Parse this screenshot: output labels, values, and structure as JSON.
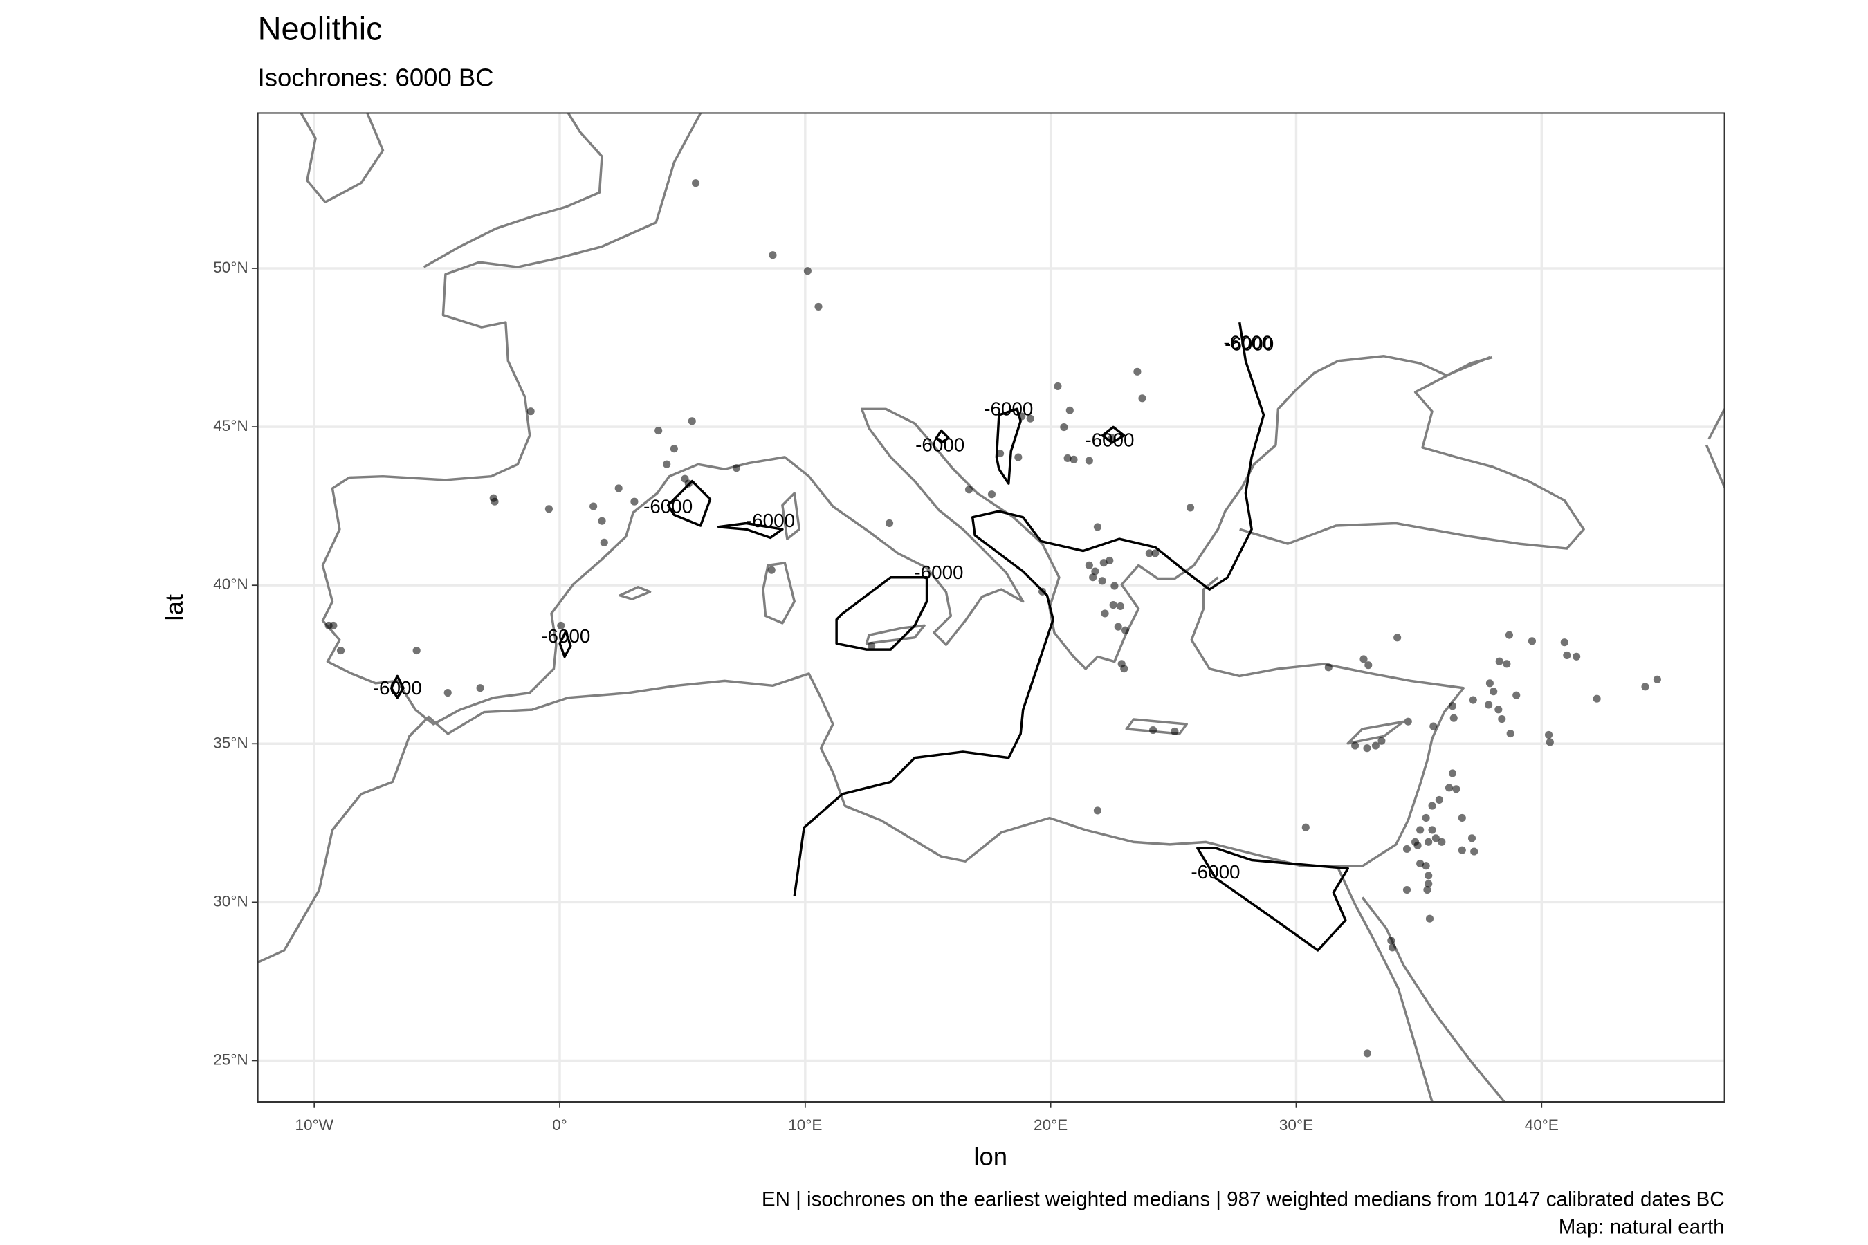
{
  "chart_data": {
    "type": "scatter",
    "title": "Neolithic",
    "subtitle": "Isochrones: 6000 BC",
    "x_label": "lon",
    "y_label": "lat",
    "caption": [
      "EN | isochrones on the earliest weighted medians | 987 weighted medians from 10147 calibrated dates BC",
      "Map: natural earth"
    ],
    "contour_level": -6000,
    "color": "#000000",
    "grid": true,
    "xlim": [
      -12.3,
      47.45
    ],
    "ylim": [
      23.7,
      54.9
    ],
    "xticks": [
      {
        "value": -10,
        "label": "10°W"
      },
      {
        "value": 0,
        "label": "0°"
      },
      {
        "value": 10,
        "label": "10°E"
      },
      {
        "value": 20,
        "label": "20°E"
      },
      {
        "value": 30,
        "label": "30°E"
      },
      {
        "value": 40,
        "label": "40°E"
      }
    ],
    "yticks": [
      {
        "value": 25,
        "label": "25°N"
      },
      {
        "value": 30,
        "label": "30°N"
      },
      {
        "value": 35,
        "label": "35°N"
      },
      {
        "value": 40,
        "label": "40°N"
      },
      {
        "value": 45,
        "label": "45°N"
      },
      {
        "value": 50,
        "label": "50°N"
      }
    ],
    "x": [
      5.54,
      8.68,
      10.1,
      10.54,
      -1.18,
      4.02,
      5.39,
      4.66,
      4.36,
      5.1,
      5.25,
      7.2,
      -2.7,
      -2.65,
      -0.44,
      1.37,
      2.4,
      3.04,
      1.72,
      1.81,
      -9.41,
      -9.22,
      -8.92,
      -5.83,
      -3.24,
      -4.56,
      0.05,
      13.43,
      8.63,
      12.7,
      16.67,
      17.6,
      18.82,
      19.17,
      17.94,
      18.68,
      20.29,
      20.78,
      20.54,
      20.69,
      20.94,
      21.57,
      22.5,
      23.53,
      23.73,
      25.69,
      21.91,
      24.02,
      24.26,
      21.57,
      22.16,
      22.4,
      21.81,
      21.72,
      22.1,
      22.6,
      22.55,
      22.84,
      22.21,
      22.75,
      23.04,
      22.89,
      22.99,
      19.66,
      24.17,
      25.05,
      21.91,
      31.32,
      32.75,
      32.94,
      34.12,
      32.9,
      32.4,
      32.89,
      33.24,
      33.48,
      34.56,
      35.59,
      36.42,
      36.37,
      37.21,
      37.89,
      38.04,
      37.84,
      38.24,
      38.38,
      38.73,
      38.28,
      38.58,
      38.68,
      38.97,
      39.61,
      40.93,
      41.03,
      41.42,
      40.29,
      40.34,
      42.25,
      44.22,
      44.71,
      30.39,
      34.51,
      34.85,
      35.05,
      35.29,
      35.54,
      35.83,
      36.23,
      36.37,
      36.52,
      34.95,
      35.39,
      35.69,
      35.93,
      35.05,
      35.29,
      35.39,
      35.39,
      35.34,
      34.51,
      35.44,
      33.87,
      33.92,
      36.76,
      37.16,
      37.25,
      35.54,
      36.76
    ],
    "values": [
      52.69,
      50.42,
      49.92,
      48.79,
      45.49,
      44.88,
      45.18,
      44.31,
      43.82,
      43.36,
      43.21,
      43.7,
      42.75,
      42.64,
      42.41,
      42.49,
      43.06,
      42.64,
      42.03,
      41.35,
      38.73,
      38.73,
      37.94,
      37.94,
      36.76,
      36.61,
      38.73,
      41.96,
      40.48,
      38.09,
      43.02,
      42.87,
      45.33,
      45.26,
      44.16,
      44.04,
      46.28,
      45.52,
      44.99,
      44.01,
      43.97,
      43.93,
      44.65,
      46.74,
      45.9,
      42.45,
      41.84,
      41.01,
      41.01,
      40.63,
      40.71,
      40.78,
      40.44,
      40.25,
      40.14,
      39.98,
      39.38,
      39.34,
      39.11,
      38.69,
      38.58,
      37.52,
      37.37,
      39.8,
      35.43,
      35.39,
      32.89,
      37.41,
      37.67,
      37.48,
      38.35,
      25.23,
      34.94,
      34.86,
      34.94,
      35.09,
      35.7,
      35.55,
      35.81,
      36.19,
      36.38,
      36.91,
      36.65,
      36.23,
      36.08,
      35.78,
      35.32,
      37.6,
      37.52,
      38.43,
      36.53,
      38.24,
      38.2,
      37.79,
      37.75,
      35.28,
      35.05,
      36.42,
      36.8,
      37.03,
      32.36,
      31.68,
      31.9,
      32.28,
      32.66,
      33.04,
      33.23,
      33.61,
      34.07,
      33.57,
      31.79,
      31.9,
      32.02,
      31.9,
      31.22,
      31.15,
      30.84,
      30.58,
      30.39,
      30.39,
      29.48,
      28.79,
      28.57,
      31.64,
      32.02,
      31.6,
      32.28,
      32.66
    ]
  }
}
